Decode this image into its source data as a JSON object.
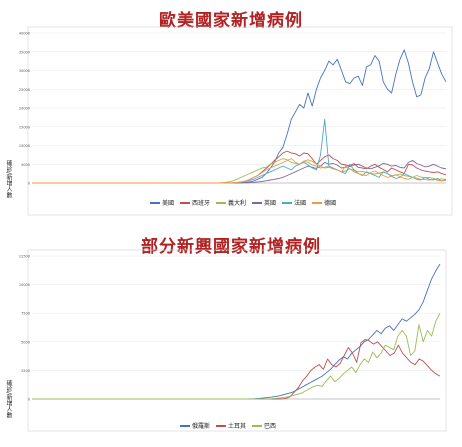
{
  "chart_data": [
    {
      "type": "line",
      "title": "歐美國家新增病例",
      "ylabel": "確診/新增人數",
      "ylim": [
        0,
        40000
      ],
      "yticks": [
        0,
        5000,
        10000,
        15000,
        20000,
        25000,
        30000,
        35000,
        40000
      ],
      "grid": true,
      "legend": "bottom",
      "series": [
        {
          "name": "美國",
          "color": "#4472c4",
          "values": [
            0,
            0,
            0,
            0,
            0,
            0,
            0,
            0,
            0,
            0,
            0,
            0,
            0,
            0,
            0,
            0,
            0,
            0,
            0,
            0,
            0,
            0,
            0,
            0,
            0,
            0,
            0,
            0,
            0,
            0,
            0,
            0,
            0,
            0,
            0,
            0,
            0,
            0,
            0,
            0,
            0,
            0,
            0,
            1,
            1,
            2,
            5,
            10,
            20,
            40,
            80,
            150,
            300,
            500,
            1000,
            1500,
            2500,
            4000,
            5500,
            8000,
            9500,
            13000,
            17000,
            19000,
            21000,
            20000,
            24000,
            20500,
            25000,
            28000,
            30000,
            32500,
            31500,
            33000,
            30000,
            27000,
            26500,
            28000,
            28500,
            26000,
            31000,
            31500,
            34000,
            32500,
            27000,
            25000,
            24000,
            29000,
            33000,
            35500,
            32000,
            27000,
            23000,
            23500,
            28000,
            30500,
            35000,
            32000,
            29000,
            27000
          ]
        },
        {
          "name": "西班牙",
          "color": "#c0504d",
          "values": [
            0,
            0,
            0,
            0,
            0,
            0,
            0,
            0,
            0,
            0,
            0,
            0,
            0,
            0,
            0,
            0,
            0,
            0,
            0,
            0,
            0,
            0,
            0,
            0,
            0,
            0,
            0,
            0,
            0,
            0,
            0,
            0,
            0,
            0,
            0,
            0,
            0,
            0,
            0,
            0,
            0,
            0,
            0,
            0,
            5,
            10,
            20,
            40,
            80,
            150,
            300,
            500,
            900,
            1500,
            2000,
            3000,
            3900,
            4900,
            6000,
            7000,
            8000,
            8500,
            8000,
            7800,
            7200,
            8000,
            7800,
            6500,
            5000,
            6000,
            7000,
            7500,
            6500,
            6000,
            5000,
            4800,
            4600,
            5200,
            4200,
            4000,
            3800,
            4500,
            5000,
            4200,
            3600,
            3000,
            4000,
            3500,
            3000,
            2500,
            5000,
            4800,
            4000,
            3500,
            3200,
            3000,
            2800,
            3000,
            2500,
            2200
          ]
        },
        {
          "name": "義大利",
          "color": "#9bbb59",
          "values": [
            0,
            0,
            0,
            0,
            0,
            0,
            0,
            0,
            0,
            0,
            0,
            0,
            0,
            0,
            0,
            0,
            0,
            0,
            0,
            0,
            0,
            0,
            0,
            0,
            0,
            0,
            0,
            0,
            0,
            0,
            0,
            0,
            0,
            0,
            0,
            0,
            0,
            0,
            0,
            0,
            0,
            0,
            0,
            0,
            0,
            50,
            150,
            250,
            600,
            1000,
            1500,
            2000,
            2500,
            3000,
            3500,
            4000,
            4200,
            5000,
            5500,
            6000,
            6500,
            6200,
            5500,
            5200,
            5000,
            5800,
            5500,
            4800,
            4500,
            4000,
            4200,
            4500,
            3800,
            3500,
            3000,
            3200,
            3800,
            3400,
            3000,
            3100,
            2800,
            2500,
            2400,
            2600,
            3000,
            2500,
            2000,
            2100,
            2400,
            2000,
            1800,
            1500,
            2000,
            1600,
            1400,
            1500,
            1200,
            1000,
            1100,
            1000
          ]
        },
        {
          "name": "英國",
          "color": "#8064a2",
          "values": [
            0,
            0,
            0,
            0,
            0,
            0,
            0,
            0,
            0,
            0,
            0,
            0,
            0,
            0,
            0,
            0,
            0,
            0,
            0,
            0,
            0,
            0,
            0,
            0,
            0,
            0,
            0,
            0,
            0,
            0,
            0,
            0,
            0,
            0,
            0,
            0,
            0,
            0,
            0,
            0,
            0,
            0,
            0,
            0,
            0,
            0,
            0,
            0,
            5,
            10,
            20,
            40,
            80,
            150,
            300,
            400,
            600,
            800,
            1000,
            1200,
            1500,
            2000,
            2500,
            3000,
            3500,
            4000,
            4500,
            4200,
            3900,
            4500,
            5500,
            5000,
            5200,
            4800,
            4000,
            4200,
            4400,
            4800,
            5000,
            4500,
            4000,
            3800,
            4200,
            4600,
            5200,
            5000,
            4500,
            4700,
            4200,
            4000,
            5500,
            6000,
            5200,
            4800,
            4300,
            4500,
            5000,
            4500,
            4000,
            3800
          ]
        },
        {
          "name": "法國",
          "color": "#4bacc6",
          "values": [
            0,
            0,
            0,
            0,
            0,
            0,
            0,
            0,
            0,
            0,
            0,
            0,
            0,
            0,
            0,
            0,
            0,
            0,
            0,
            0,
            0,
            0,
            0,
            0,
            0,
            0,
            0,
            0,
            0,
            0,
            0,
            0,
            0,
            0,
            0,
            0,
            0,
            0,
            0,
            0,
            0,
            0,
            0,
            0,
            0,
            0,
            10,
            20,
            50,
            100,
            200,
            400,
            700,
            1000,
            1500,
            2000,
            2500,
            3000,
            3500,
            4000,
            4500,
            4000,
            3500,
            4500,
            5000,
            5500,
            4800,
            4000,
            3500,
            7500,
            17000,
            4500,
            4000,
            3500,
            3000,
            2500,
            5000,
            3500,
            2500,
            2000,
            3000,
            2500,
            2000,
            1500,
            3000,
            2500,
            1800,
            1200,
            1500,
            2500,
            2000,
            1500,
            1000,
            800,
            1500,
            1000,
            800,
            1200,
            500,
            900
          ]
        },
        {
          "name": "德國",
          "color": "#f79646",
          "values": [
            0,
            0,
            0,
            0,
            0,
            0,
            0,
            0,
            0,
            0,
            0,
            0,
            0,
            0,
            0,
            0,
            0,
            0,
            0,
            0,
            0,
            0,
            0,
            0,
            0,
            0,
            0,
            0,
            0,
            0,
            0,
            0,
            0,
            0,
            0,
            0,
            0,
            0,
            0,
            0,
            0,
            0,
            0,
            0,
            0,
            5,
            10,
            30,
            60,
            120,
            250,
            500,
            900,
            1500,
            2000,
            2800,
            3500,
            4000,
            4500,
            5000,
            5500,
            6000,
            6500,
            5500,
            5000,
            5800,
            6200,
            5800,
            5000,
            4500,
            4000,
            4200,
            3800,
            3500,
            3000,
            4500,
            3800,
            3000,
            2500,
            2200,
            2000,
            2800,
            3200,
            2600,
            2000,
            1500,
            1800,
            2200,
            1700,
            1200,
            1000,
            1500,
            1300,
            1000,
            900,
            800,
            1000,
            700,
            600,
            700
          ]
        }
      ]
    },
    {
      "type": "line",
      "title": "部分新興國家新增病例",
      "ylabel": "確診/新增人數",
      "ylim": [
        0,
        12500
      ],
      "yticks": [
        0,
        2500,
        5000,
        7500,
        10000,
        12500
      ],
      "grid": true,
      "legend": "bottom",
      "series": [
        {
          "name": "俄羅斯",
          "color": "#4472c4",
          "values": [
            0,
            0,
            0,
            0,
            0,
            0,
            0,
            0,
            0,
            0,
            0,
            0,
            0,
            0,
            0,
            0,
            0,
            0,
            0,
            0,
            0,
            0,
            0,
            0,
            0,
            0,
            0,
            0,
            0,
            0,
            0,
            0,
            0,
            0,
            0,
            0,
            0,
            0,
            0,
            0,
            0,
            0,
            0,
            0,
            0,
            0,
            0,
            0,
            0,
            0,
            5,
            10,
            20,
            30,
            50,
            80,
            120,
            170,
            230,
            300,
            400,
            500,
            600,
            800,
            1000,
            1200,
            1400,
            1600,
            1800,
            2000,
            2300,
            2600,
            3000,
            3400,
            3700,
            3500,
            4000,
            4300,
            4600,
            5000,
            5200,
            5600,
            6000,
            5700,
            6200,
            6400,
            6000,
            6500,
            7000,
            6800,
            7100,
            7400,
            7800,
            8500,
            9500,
            10500,
            11200,
            11800
          ]
        },
        {
          "name": "土耳其",
          "color": "#c0504d",
          "values": [
            0,
            0,
            0,
            0,
            0,
            0,
            0,
            0,
            0,
            0,
            0,
            0,
            0,
            0,
            0,
            0,
            0,
            0,
            0,
            0,
            0,
            0,
            0,
            0,
            0,
            0,
            0,
            0,
            0,
            0,
            0,
            0,
            0,
            0,
            0,
            0,
            0,
            0,
            0,
            0,
            0,
            0,
            0,
            0,
            0,
            0,
            0,
            0,
            0,
            0,
            0,
            0,
            0,
            0,
            0,
            0,
            0,
            0,
            0,
            0,
            10,
            50,
            200,
            600,
            1000,
            1600,
            2000,
            2500,
            2800,
            3000,
            2600,
            3500,
            3000,
            2800,
            3100,
            3800,
            4500,
            4000,
            3200,
            4900,
            5200,
            5100,
            4800,
            5000,
            4600,
            4200,
            3800,
            4000,
            4700,
            4000,
            3600,
            3200,
            3000,
            3500,
            3300,
            2900,
            2500,
            2200,
            2000
          ]
        },
        {
          "name": "巴西",
          "color": "#9bbb59",
          "values": [
            0,
            0,
            0,
            0,
            0,
            0,
            0,
            0,
            0,
            0,
            0,
            0,
            0,
            0,
            0,
            0,
            0,
            0,
            0,
            0,
            0,
            0,
            0,
            0,
            0,
            0,
            0,
            0,
            0,
            0,
            0,
            0,
            0,
            0,
            0,
            0,
            0,
            0,
            0,
            0,
            0,
            0,
            0,
            0,
            0,
            0,
            0,
            0,
            0,
            0,
            0,
            0,
            0,
            0,
            0,
            5,
            10,
            30,
            60,
            100,
            150,
            200,
            300,
            400,
            500,
            700,
            900,
            1100,
            1200,
            1100,
            1600,
            2000,
            1500,
            1800,
            2200,
            2500,
            2800,
            2300,
            3000,
            3500,
            3200,
            4100,
            3600,
            4000,
            4700,
            4500,
            4300,
            5500,
            6000,
            5500,
            3800,
            4200,
            6500,
            5000,
            6000,
            5500,
            6800,
            7500
          ]
        }
      ]
    }
  ]
}
